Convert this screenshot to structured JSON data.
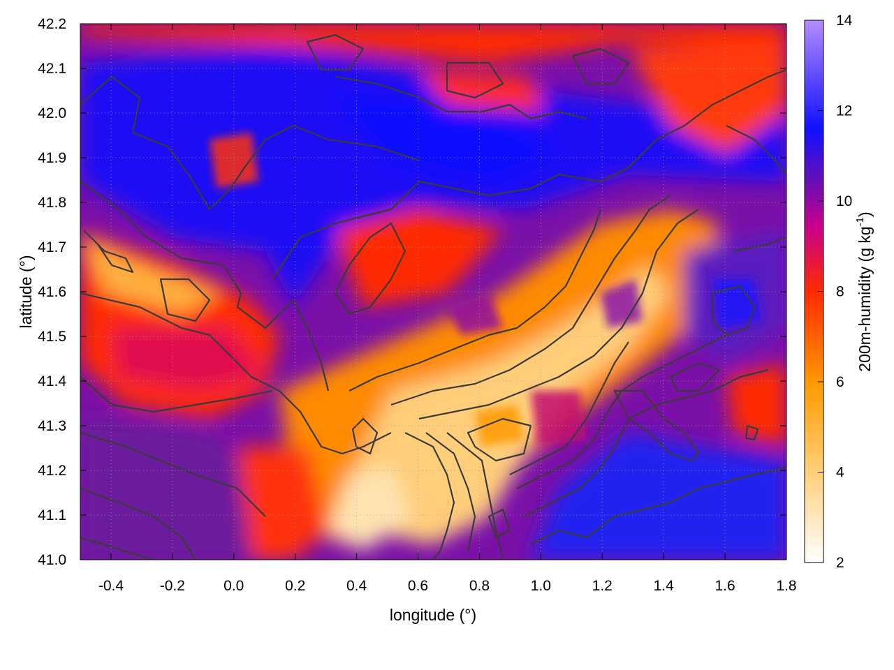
{
  "chart_data": {
    "type": "heatmap",
    "title": "",
    "xlabel": "longitude (°)",
    "ylabel": "latitude (°)",
    "xlim": [
      -0.5,
      1.8
    ],
    "ylim": [
      41.0,
      42.2
    ],
    "x_ticks": [
      "-0.4",
      "-0.2",
      "0.0",
      "0.2",
      "0.4",
      "0.6",
      "0.8",
      "1.0",
      "1.2",
      "1.4",
      "1.6",
      "1.8"
    ],
    "y_ticks": [
      "41.0",
      "41.1",
      "41.2",
      "41.3",
      "41.4",
      "41.5",
      "41.6",
      "41.7",
      "41.8",
      "41.9",
      "42.0",
      "42.1",
      "42.2"
    ],
    "colorbar": {
      "label_main": "200m-humidity (g kg",
      "label_sup": "-1",
      "label_end": ")",
      "range": [
        2,
        14
      ],
      "ticks": [
        "2",
        "4",
        "6",
        "8",
        "10",
        "12",
        "14"
      ],
      "colormap": [
        "#ffffff",
        "#ffd27f",
        "#ff9a00",
        "#ff2a00",
        "#c8008c",
        "#6a0fb4",
        "#1010ff",
        "#b48cff"
      ]
    },
    "field_regions": [
      {
        "name": "dry-interior-core",
        "value": 3.5,
        "lon": 0.75,
        "lat": 41.25
      },
      {
        "name": "humid-north-band",
        "value": 11.5,
        "lon": 0.55,
        "lat": 41.9
      },
      {
        "name": "humid-coast-southeast",
        "value": 11.5,
        "lon": 1.5,
        "lat": 41.1
      },
      {
        "name": "moderate-west",
        "value": 8.5,
        "lon": -0.2,
        "lat": 41.45
      }
    ],
    "grid": true,
    "contours": "terrain elevation (dark gray lines)"
  }
}
